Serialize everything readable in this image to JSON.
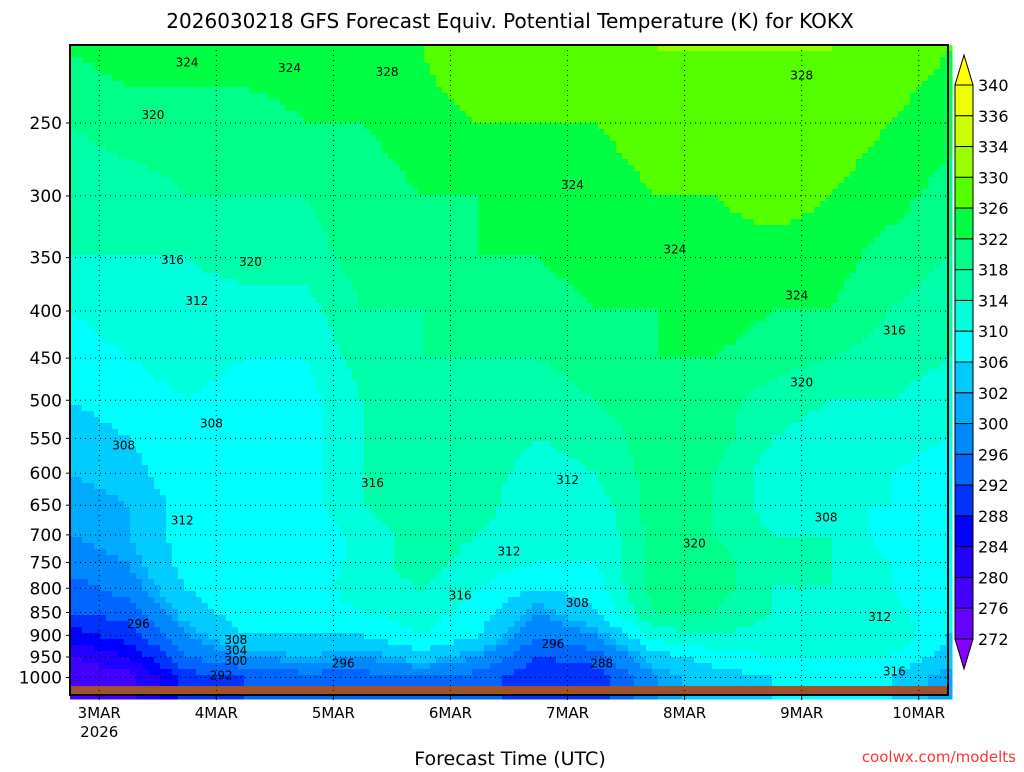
{
  "chart_data": {
    "type": "heatmap",
    "title": "2026030218 GFS Forecast Equiv. Potential Temperature (K) for KOKX",
    "xlabel": "Forecast Time (UTC)",
    "ylabel": "",
    "credit": "coolwx.com/modelts",
    "x_tick_labels": [
      {
        "label": "3MAR",
        "sub": "2026",
        "hour": 6
      },
      {
        "label": "4MAR",
        "hour": 30
      },
      {
        "label": "5MAR",
        "hour": 54
      },
      {
        "label": "6MAR",
        "hour": 78
      },
      {
        "label": "7MAR",
        "hour": 102
      },
      {
        "label": "8MAR",
        "hour": 126
      },
      {
        "label": "9MAR",
        "hour": 150
      },
      {
        "label": "10MAR",
        "hour": 174
      }
    ],
    "xlim_hours": [
      0,
      180
    ],
    "y_ticks": [
      250,
      300,
      350,
      400,
      450,
      500,
      550,
      600,
      650,
      700,
      750,
      800,
      850,
      900,
      950,
      1000
    ],
    "ylim_hpa": [
      1046,
      206
    ],
    "colorbar": {
      "labels": [
        "340",
        "336",
        "334",
        "330",
        "326",
        "322",
        "318",
        "314",
        "310",
        "306",
        "302",
        "300",
        "296",
        "292",
        "288",
        "284",
        "280",
        "276",
        "272"
      ],
      "levels": [
        272,
        276,
        280,
        284,
        288,
        292,
        296,
        300,
        302,
        306,
        310,
        314,
        318,
        322,
        326,
        330,
        334,
        336,
        340
      ],
      "colors": [
        "#8800ff",
        "#6600ff",
        "#4400ff",
        "#2200ff",
        "#0000ff",
        "#0033ff",
        "#0066ff",
        "#0088ff",
        "#00aaff",
        "#00ccff",
        "#00ffff",
        "#00ffdd",
        "#00ffaa",
        "#00ff88",
        "#00ff44",
        "#55ff00",
        "#99ff00",
        "#ccff00",
        "#eeff00",
        "#ffff00"
      ]
    },
    "grid": true,
    "hours": [
      0,
      12,
      24,
      36,
      48,
      60,
      72,
      84,
      96,
      108,
      120,
      132,
      144,
      156,
      168,
      180
    ],
    "pressures": [
      1000,
      950,
      900,
      850,
      800,
      750,
      700,
      650,
      600,
      550,
      500,
      450,
      400,
      350,
      300,
      250,
      210
    ],
    "values": [
      [
        276,
        280,
        286,
        292,
        294,
        298,
        300,
        300,
        302,
        304,
        306,
        308,
        310,
        314,
        316,
        318,
        322
      ],
      [
        278,
        284,
        290,
        294,
        298,
        300,
        302,
        302,
        304,
        306,
        308,
        310,
        312,
        314,
        316,
        320,
        324
      ],
      [
        290,
        296,
        300,
        304,
        306,
        308,
        308,
        308,
        310,
        310,
        310,
        312,
        312,
        314,
        318,
        320,
        324
      ],
      [
        292,
        300,
        306,
        308,
        310,
        310,
        310,
        310,
        310,
        308,
        308,
        310,
        312,
        316,
        318,
        320,
        324
      ],
      [
        294,
        302,
        306,
        308,
        308,
        306,
        306,
        308,
        308,
        308,
        308,
        310,
        312,
        316,
        318,
        322,
        324
      ],
      [
        294,
        300,
        306,
        310,
        312,
        312,
        312,
        314,
        314,
        314,
        314,
        316,
        318,
        320,
        320,
        322,
        324
      ],
      [
        296,
        304,
        310,
        312,
        314,
        316,
        316,
        316,
        316,
        316,
        316,
        318,
        318,
        320,
        322,
        324,
        326
      ],
      [
        294,
        300,
        306,
        308,
        310,
        312,
        314,
        316,
        316,
        316,
        318,
        318,
        320,
        322,
        322,
        326,
        330
      ],
      [
        288,
        292,
        296,
        300,
        306,
        310,
        310,
        310,
        312,
        314,
        316,
        318,
        320,
        322,
        324,
        326,
        328
      ],
      [
        290,
        294,
        300,
        306,
        308,
        310,
        310,
        312,
        314,
        316,
        318,
        320,
        322,
        324,
        324,
        326,
        328
      ],
      [
        300,
        304,
        312,
        318,
        320,
        320,
        320,
        320,
        320,
        320,
        320,
        322,
        322,
        324,
        326,
        328,
        330
      ],
      [
        304,
        308,
        314,
        318,
        320,
        320,
        318,
        318,
        318,
        320,
        320,
        322,
        324,
        324,
        326,
        328,
        330
      ],
      [
        306,
        310,
        312,
        314,
        314,
        314,
        314,
        312,
        312,
        314,
        316,
        320,
        322,
        324,
        328,
        330,
        330
      ],
      [
        306,
        310,
        312,
        312,
        314,
        314,
        314,
        310,
        310,
        312,
        314,
        318,
        322,
        324,
        326,
        328,
        330
      ],
      [
        306,
        310,
        314,
        312,
        310,
        310,
        308,
        310,
        310,
        312,
        314,
        316,
        318,
        320,
        324,
        326,
        328
      ],
      [
        300,
        304,
        306,
        306,
        306,
        306,
        306,
        306,
        308,
        310,
        312,
        314,
        316,
        318,
        320,
        324,
        326
      ]
    ],
    "contour_labels": [
      {
        "text": "324",
        "hour": 24,
        "p": 215
      },
      {
        "text": "324",
        "hour": 45,
        "p": 218
      },
      {
        "text": "328",
        "hour": 65,
        "p": 220
      },
      {
        "text": "328",
        "hour": 150,
        "p": 222
      },
      {
        "text": "320",
        "hour": 17,
        "p": 245
      },
      {
        "text": "324",
        "hour": 103,
        "p": 292
      },
      {
        "text": "324",
        "hour": 124,
        "p": 343
      },
      {
        "text": "316",
        "hour": 21,
        "p": 352
      },
      {
        "text": "320",
        "hour": 37,
        "p": 354
      },
      {
        "text": "312",
        "hour": 26,
        "p": 390
      },
      {
        "text": "324",
        "hour": 149,
        "p": 385
      },
      {
        "text": "316",
        "hour": 169,
        "p": 420
      },
      {
        "text": "320",
        "hour": 150,
        "p": 478
      },
      {
        "text": "308",
        "hour": 29,
        "p": 530
      },
      {
        "text": "308",
        "hour": 11,
        "p": 560
      },
      {
        "text": "312",
        "hour": 102,
        "p": 610
      },
      {
        "text": "316",
        "hour": 62,
        "p": 615
      },
      {
        "text": "312",
        "hour": 23,
        "p": 675
      },
      {
        "text": "312",
        "hour": 90,
        "p": 730
      },
      {
        "text": "320",
        "hour": 128,
        "p": 715
      },
      {
        "text": "308",
        "hour": 155,
        "p": 670
      },
      {
        "text": "316",
        "hour": 80,
        "p": 815
      },
      {
        "text": "308",
        "hour": 104,
        "p": 830
      },
      {
        "text": "296",
        "hour": 14,
        "p": 875
      },
      {
        "text": "308",
        "hour": 34,
        "p": 910
      },
      {
        "text": "304",
        "hour": 34,
        "p": 935
      },
      {
        "text": "300",
        "hour": 34,
        "p": 960
      },
      {
        "text": "296",
        "hour": 56,
        "p": 965
      },
      {
        "text": "292",
        "hour": 31,
        "p": 995
      },
      {
        "text": "296",
        "hour": 99,
        "p": 920
      },
      {
        "text": "288",
        "hour": 109,
        "p": 965
      },
      {
        "text": "312",
        "hour": 166,
        "p": 860
      },
      {
        "text": "316",
        "hour": 169,
        "p": 985
      }
    ]
  }
}
